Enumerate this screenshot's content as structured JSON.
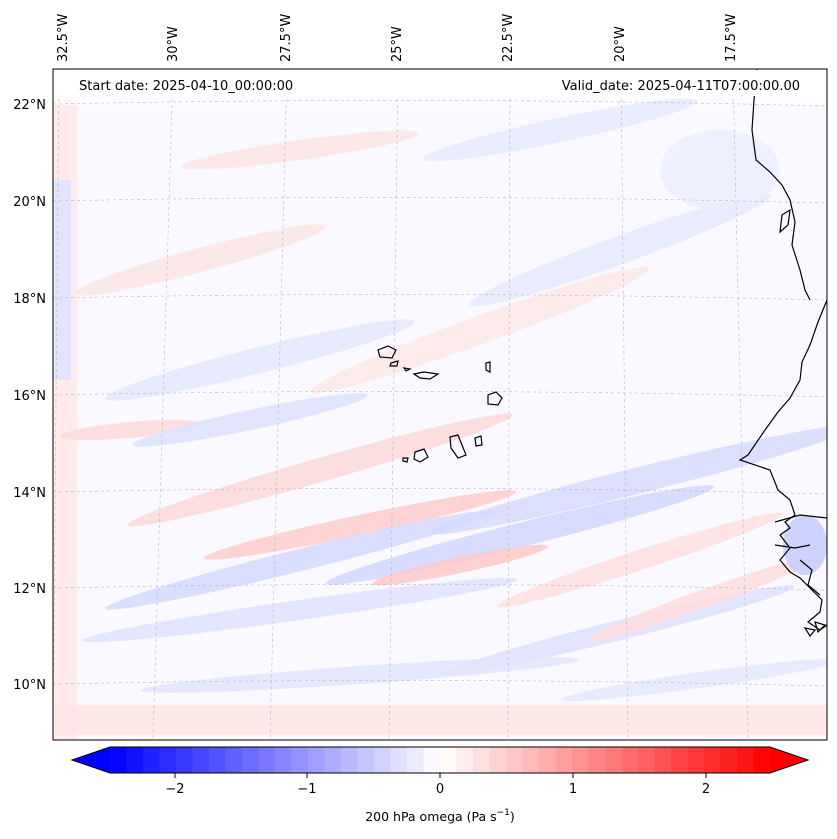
{
  "map": {
    "start_label": "Start date: 2025-04-10_00:00:00",
    "valid_label": "Valid_date: 2025-04-11T07:00:00.00",
    "lon_labels": [
      "32.5°W",
      "30°W",
      "27.5°W",
      "25°W",
      "22.5°W",
      "20°W",
      "17.5°W"
    ],
    "lat_labels": [
      "22°N",
      "20°N",
      "18°N",
      "16°N",
      "14°N",
      "12°N",
      "10°N"
    ],
    "colors": {
      "negative": "#0000ff",
      "zero": "#ffffff",
      "positive": "#ff0000",
      "coastline": "#000000",
      "gridline": "#b0b0b0"
    }
  },
  "colorbar": {
    "label_main": "200 hPa omega (Pa s",
    "label_exp": "−1",
    "label_close": ")",
    "ticks": [
      "−2",
      "−1",
      "0",
      "1",
      "2"
    ],
    "range": [
      -2.8,
      2.8
    ],
    "levels": 40,
    "extend": "both"
  }
}
